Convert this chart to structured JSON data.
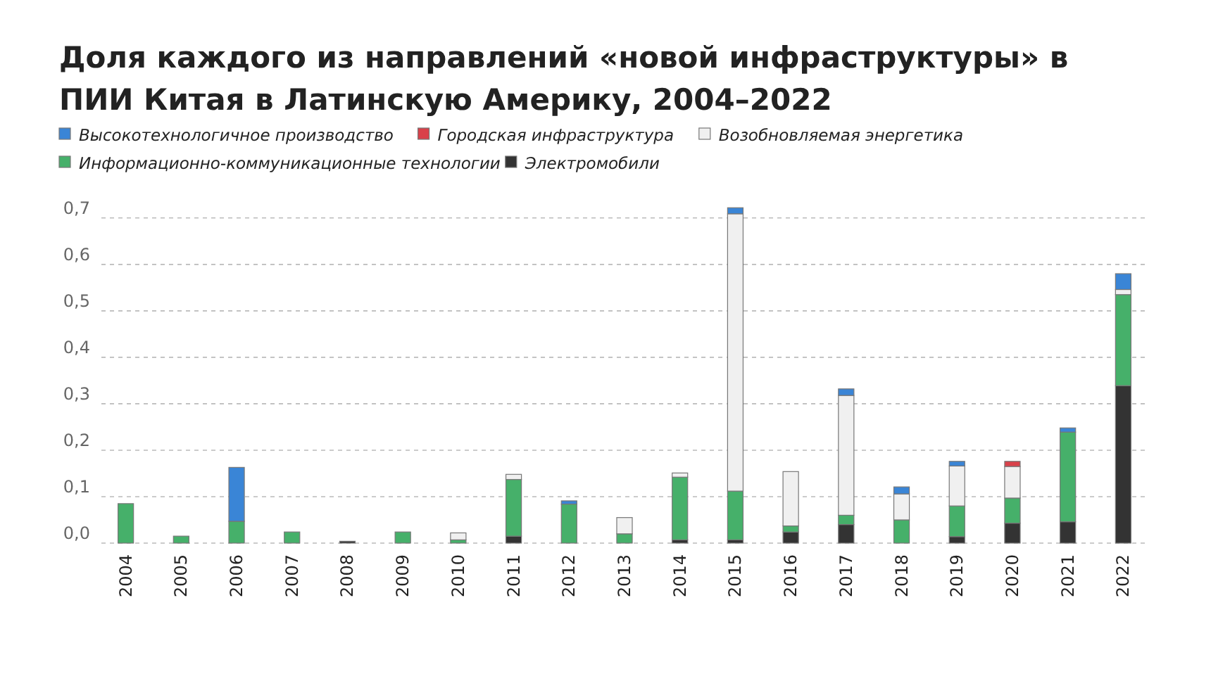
{
  "chart_data": {
    "type": "bar",
    "title": "Доля каждого из направлений «новой инфраструктуры» в ПИИ Китая в Латинскую Америку, 2004–2022",
    "categories": [
      "2004",
      "2005",
      "2006",
      "2007",
      "2008",
      "2009",
      "2010",
      "2011",
      "2012",
      "2013",
      "2014",
      "2015",
      "2016",
      "2017",
      "2018",
      "2019",
      "2020",
      "2021",
      "2022"
    ],
    "stacked": true,
    "series": [
      {
        "name": "Электромобили",
        "color": "#333333",
        "values": [
          null,
          null,
          null,
          null,
          0.004,
          null,
          null,
          0.015,
          null,
          null,
          0.007,
          0.007,
          0.024,
          0.04,
          null,
          0.014,
          0.043,
          0.046,
          0.339
        ]
      },
      {
        "name": "Информационно-коммуникационные технологии",
        "color": "#46b06a",
        "values": [
          0.085,
          0.015,
          0.047,
          0.024,
          null,
          0.024,
          0.007,
          0.122,
          0.084,
          0.02,
          0.135,
          0.105,
          0.013,
          0.02,
          0.05,
          0.066,
          0.054,
          0.193,
          0.196
        ]
      },
      {
        "name": "Возобновляемая энергетика",
        "color": "#f0f0f0",
        "values": [
          null,
          null,
          null,
          null,
          null,
          null,
          0.015,
          0.011,
          null,
          0.035,
          0.009,
          0.597,
          0.117,
          0.258,
          0.056,
          0.086,
          0.068,
          null,
          0.011
        ]
      },
      {
        "name": "Городская инфраструктура",
        "color": "#d9414a",
        "values": [
          null,
          null,
          null,
          null,
          null,
          null,
          null,
          null,
          null,
          null,
          null,
          null,
          null,
          null,
          null,
          null,
          0.011,
          null,
          null
        ]
      },
      {
        "name": "Высокотехнологичное производство",
        "color": "#3a85d6",
        "values": [
          null,
          null,
          0.116,
          null,
          null,
          null,
          null,
          null,
          0.007,
          null,
          null,
          0.013,
          null,
          0.014,
          0.015,
          0.01,
          null,
          0.009,
          0.034
        ]
      }
    ],
    "ylim": [
      0,
      0.73
    ],
    "yticks": [
      {
        "value": 0,
        "label": "0,0"
      },
      {
        "value": 0.1,
        "label": "0,1"
      },
      {
        "value": 0.2,
        "label": "0,2"
      },
      {
        "value": 0.3,
        "label": "0,3"
      },
      {
        "value": 0.4,
        "label": "0,4"
      },
      {
        "value": 0.5,
        "label": "0,5"
      },
      {
        "value": 0.6,
        "label": "0,6"
      },
      {
        "value": 0.7,
        "label": "0,7"
      }
    ],
    "grid": "y",
    "legend": "top left"
  }
}
